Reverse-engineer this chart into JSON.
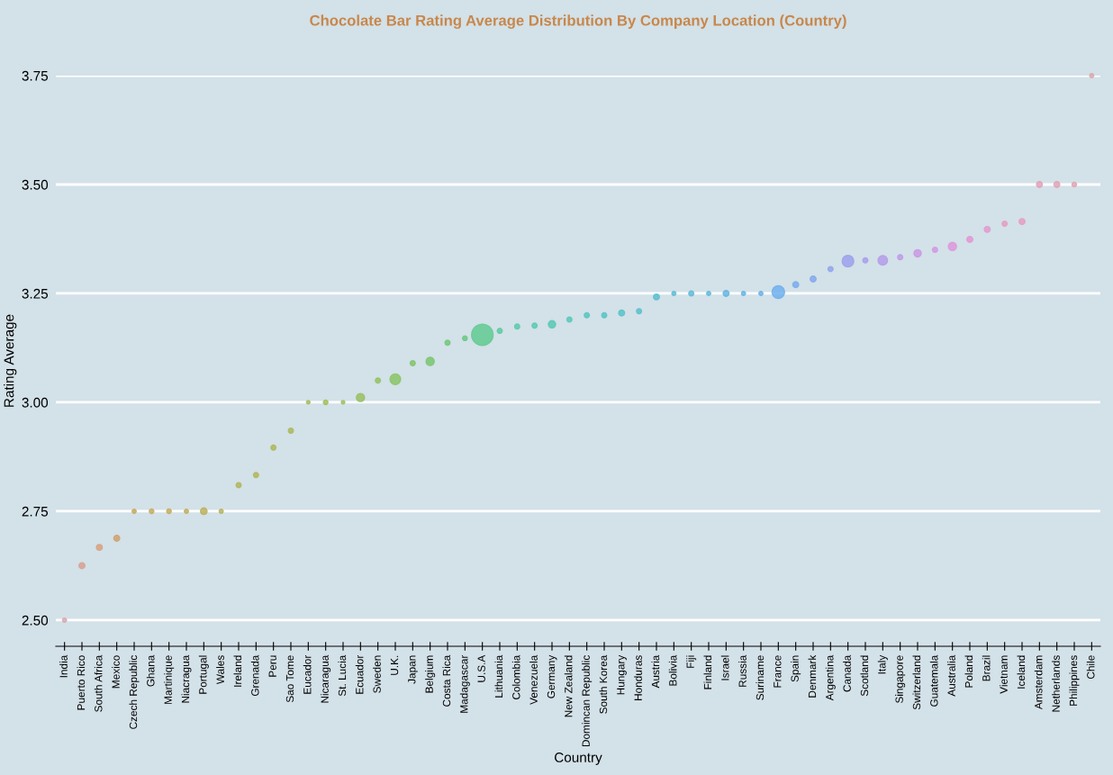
{
  "chart_data": {
    "type": "bubble",
    "title": "Chocolate Bar Rating Average Distribution By Company Location (Country)",
    "xlabel": "Country",
    "ylabel": "Rating Average",
    "categories": [
      "India",
      "Puerto Rico",
      "South Africa",
      "Mexico",
      "Czech Republic",
      "Ghana",
      "Martinique",
      "Niacragua",
      "Portugal",
      "Wales",
      "Ireland",
      "Grenada",
      "Peru",
      "Sao Tome",
      "Eucador",
      "Nicaragua",
      "St. Lucia",
      "Ecuador",
      "Sweden",
      "U.K.",
      "Japan",
      "Belgium",
      "Costa Rica",
      "Madagascar",
      "U.S.A",
      "Lithuania",
      "Colombia",
      "Venezuela",
      "Germany",
      "New Zealand",
      "Domincan Republic",
      "South Korea",
      "Hungary",
      "Honduras",
      "Austria",
      "Bolivia",
      "Fiji",
      "Finland",
      "Israel",
      "Russia",
      "Suriname",
      "France",
      "Spain",
      "Denmark",
      "Argentina",
      "Canada",
      "Scotland",
      "Italy",
      "Singapore",
      "Switzerland",
      "Guatemala",
      "Australia",
      "Poland",
      "Brazil",
      "Vietnam",
      "Iceland",
      "Amsterdam",
      "Netherlands",
      "Philippines",
      "Chile"
    ],
    "values": [
      2.5,
      2.625,
      2.667,
      2.688,
      2.75,
      2.75,
      2.75,
      2.75,
      2.75,
      2.75,
      2.81,
      2.833,
      2.896,
      2.935,
      3.0,
      3.0,
      3.0,
      3.011,
      3.05,
      3.053,
      3.09,
      3.094,
      3.137,
      3.147,
      3.155,
      3.164,
      3.174,
      3.176,
      3.179,
      3.19,
      3.2,
      3.2,
      3.205,
      3.209,
      3.242,
      3.25,
      3.25,
      3.25,
      3.25,
      3.25,
      3.25,
      3.253,
      3.27,
      3.283,
      3.306,
      3.324,
      3.326,
      3.326,
      3.333,
      3.342,
      3.35,
      3.358,
      3.374,
      3.397,
      3.41,
      3.415,
      3.5,
      3.5,
      3.5,
      3.75
    ],
    "sizes": [
      0.04,
      0.08,
      0.08,
      0.08,
      0.04,
      0.05,
      0.05,
      0.04,
      0.1,
      0.04,
      0.06,
      0.06,
      0.06,
      0.06,
      0.03,
      0.05,
      0.03,
      0.15,
      0.06,
      0.25,
      0.06,
      0.15,
      0.06,
      0.05,
      1,
      0.06,
      0.06,
      0.06,
      0.12,
      0.06,
      0.06,
      0.06,
      0.08,
      0.06,
      0.08,
      0.04,
      0.06,
      0.04,
      0.08,
      0.04,
      0.04,
      0.35,
      0.08,
      0.08,
      0.06,
      0.3,
      0.06,
      0.2,
      0.06,
      0.12,
      0.06,
      0.15,
      0.08,
      0.08,
      0.06,
      0.08,
      0.08,
      0.08,
      0.05,
      0.04
    ],
    "colors": [
      "#d8a8b0",
      "#d8a090",
      "#d8a080",
      "#d0a070",
      "#c8a860",
      "#c8aa60",
      "#c4ac5c",
      "#c0ae5c",
      "#bcb05c",
      "#b8b25c",
      "#b4b458",
      "#b0b658",
      "#acb858",
      "#a8ba58",
      "#a4bc5a",
      "#a0be5c",
      "#9cc05e",
      "#98c060",
      "#90c262",
      "#88c466",
      "#80c46a",
      "#78c670",
      "#70c878",
      "#68c880",
      "#60ca90",
      "#5ccaa0",
      "#5acaa8",
      "#58caae",
      "#56c8b4",
      "#56c8ba",
      "#56c6c0",
      "#56c4c4",
      "#58c2c8",
      "#58c0cc",
      "#5abed0",
      "#5cbcd4",
      "#5ebad8",
      "#60b8dc",
      "#62b6e0",
      "#66b4e4",
      "#6ab2e8",
      "#6eb0ec",
      "#78acec",
      "#84a8ec",
      "#90a4ec",
      "#9ca0ec",
      "#a89eec",
      "#b49cea",
      "#c09ae8",
      "#ca98e4",
      "#d498e0",
      "#dc98dc",
      "#e098d4",
      "#e29acc",
      "#e49cc4",
      "#e49ebe",
      "#e4a0b8",
      "#e2a2b4",
      "#e0a4b0",
      "#dca6ac"
    ],
    "ylim": [
      2.44,
      3.75
    ],
    "yticks": [
      {
        "value": 2.5,
        "label": "2.50"
      },
      {
        "value": 2.75,
        "label": "2.75"
      },
      {
        "value": 3.0,
        "label": "3.00"
      },
      {
        "value": 3.25,
        "label": "3.25"
      },
      {
        "value": 3.5,
        "label": "3.50"
      },
      {
        "value": 3.75,
        "label": "3.75"
      }
    ],
    "grid": "y",
    "marker": "circle"
  }
}
